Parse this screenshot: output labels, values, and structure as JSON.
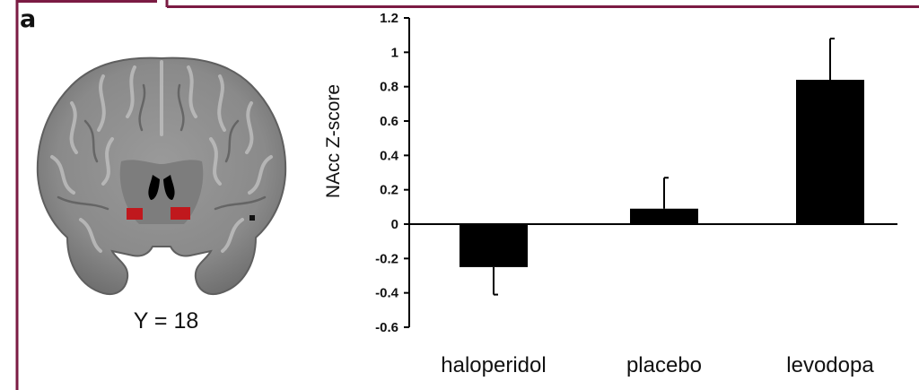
{
  "panel": {
    "letter": "a",
    "slice_caption": "Y = 18"
  },
  "colors": {
    "frame": "#7b1b43",
    "bar": "#000000",
    "roi": "#c0181d",
    "brain_gray": "#8a8a8a"
  },
  "chart_data": {
    "type": "bar",
    "title": "",
    "xlabel": "",
    "ylabel": "NAcc Z-score",
    "categories": [
      "haloperidol",
      "placebo",
      "levodopa"
    ],
    "values": [
      -0.25,
      0.09,
      0.84
    ],
    "error_plus": [
      0.16,
      0.18,
      0.24
    ],
    "ylim": [
      -0.6,
      1.2
    ],
    "yticks": [
      "1.2",
      "1",
      "0.8",
      "0.6",
      "0.4",
      "0.2",
      "0",
      "-0.2",
      "-0.4",
      "-0.6"
    ],
    "grid": false,
    "legend": "none"
  }
}
